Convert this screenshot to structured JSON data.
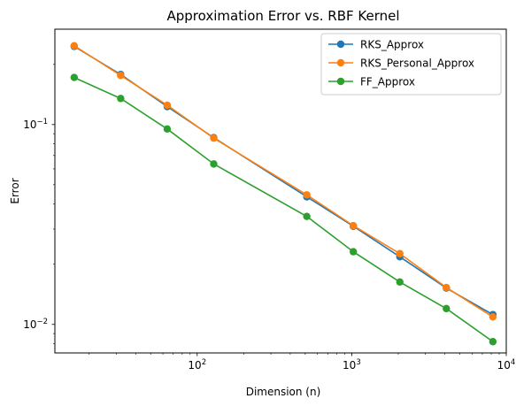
{
  "chart_data": {
    "type": "line",
    "title": "Approximation Error vs. RBF Kernel",
    "xlabel": "Dimension (n)",
    "ylabel": "Error",
    "xscale": "log",
    "yscale": "log",
    "xlim": [
      12,
      10000
    ],
    "ylim": [
      0.0072,
      0.3
    ],
    "x": [
      16,
      32,
      64,
      128,
      512,
      1024,
      2048,
      4096,
      8192
    ],
    "x_ticks": [
      {
        "value": 100,
        "base": "10",
        "exp": "2"
      },
      {
        "value": 1000,
        "base": "10",
        "exp": "3"
      },
      {
        "value": 10000,
        "base": "10",
        "exp": "4"
      }
    ],
    "y_ticks": [
      {
        "value": 0.1,
        "base": "10",
        "exp": "−1"
      },
      {
        "value": 0.01,
        "base": "10",
        "exp": "−2"
      }
    ],
    "series": [
      {
        "name": "RKS_Approx",
        "color": "#1f77b4",
        "values": [
          0.246,
          0.178,
          0.123,
          0.086,
          0.0435,
          0.031,
          0.0218,
          0.0152,
          0.0112
        ]
      },
      {
        "name": "RKS_Personal_Approx",
        "color": "#ff7f0e",
        "values": [
          0.248,
          0.176,
          0.125,
          0.0855,
          0.0445,
          0.0312,
          0.0226,
          0.0153,
          0.0109
        ]
      },
      {
        "name": "FF_Approx",
        "color": "#2ca02c",
        "values": [
          0.172,
          0.135,
          0.095,
          0.0635,
          0.0347,
          0.0231,
          0.0163,
          0.012,
          0.0082
        ]
      }
    ],
    "legend_position": "top-right",
    "grid": false
  }
}
